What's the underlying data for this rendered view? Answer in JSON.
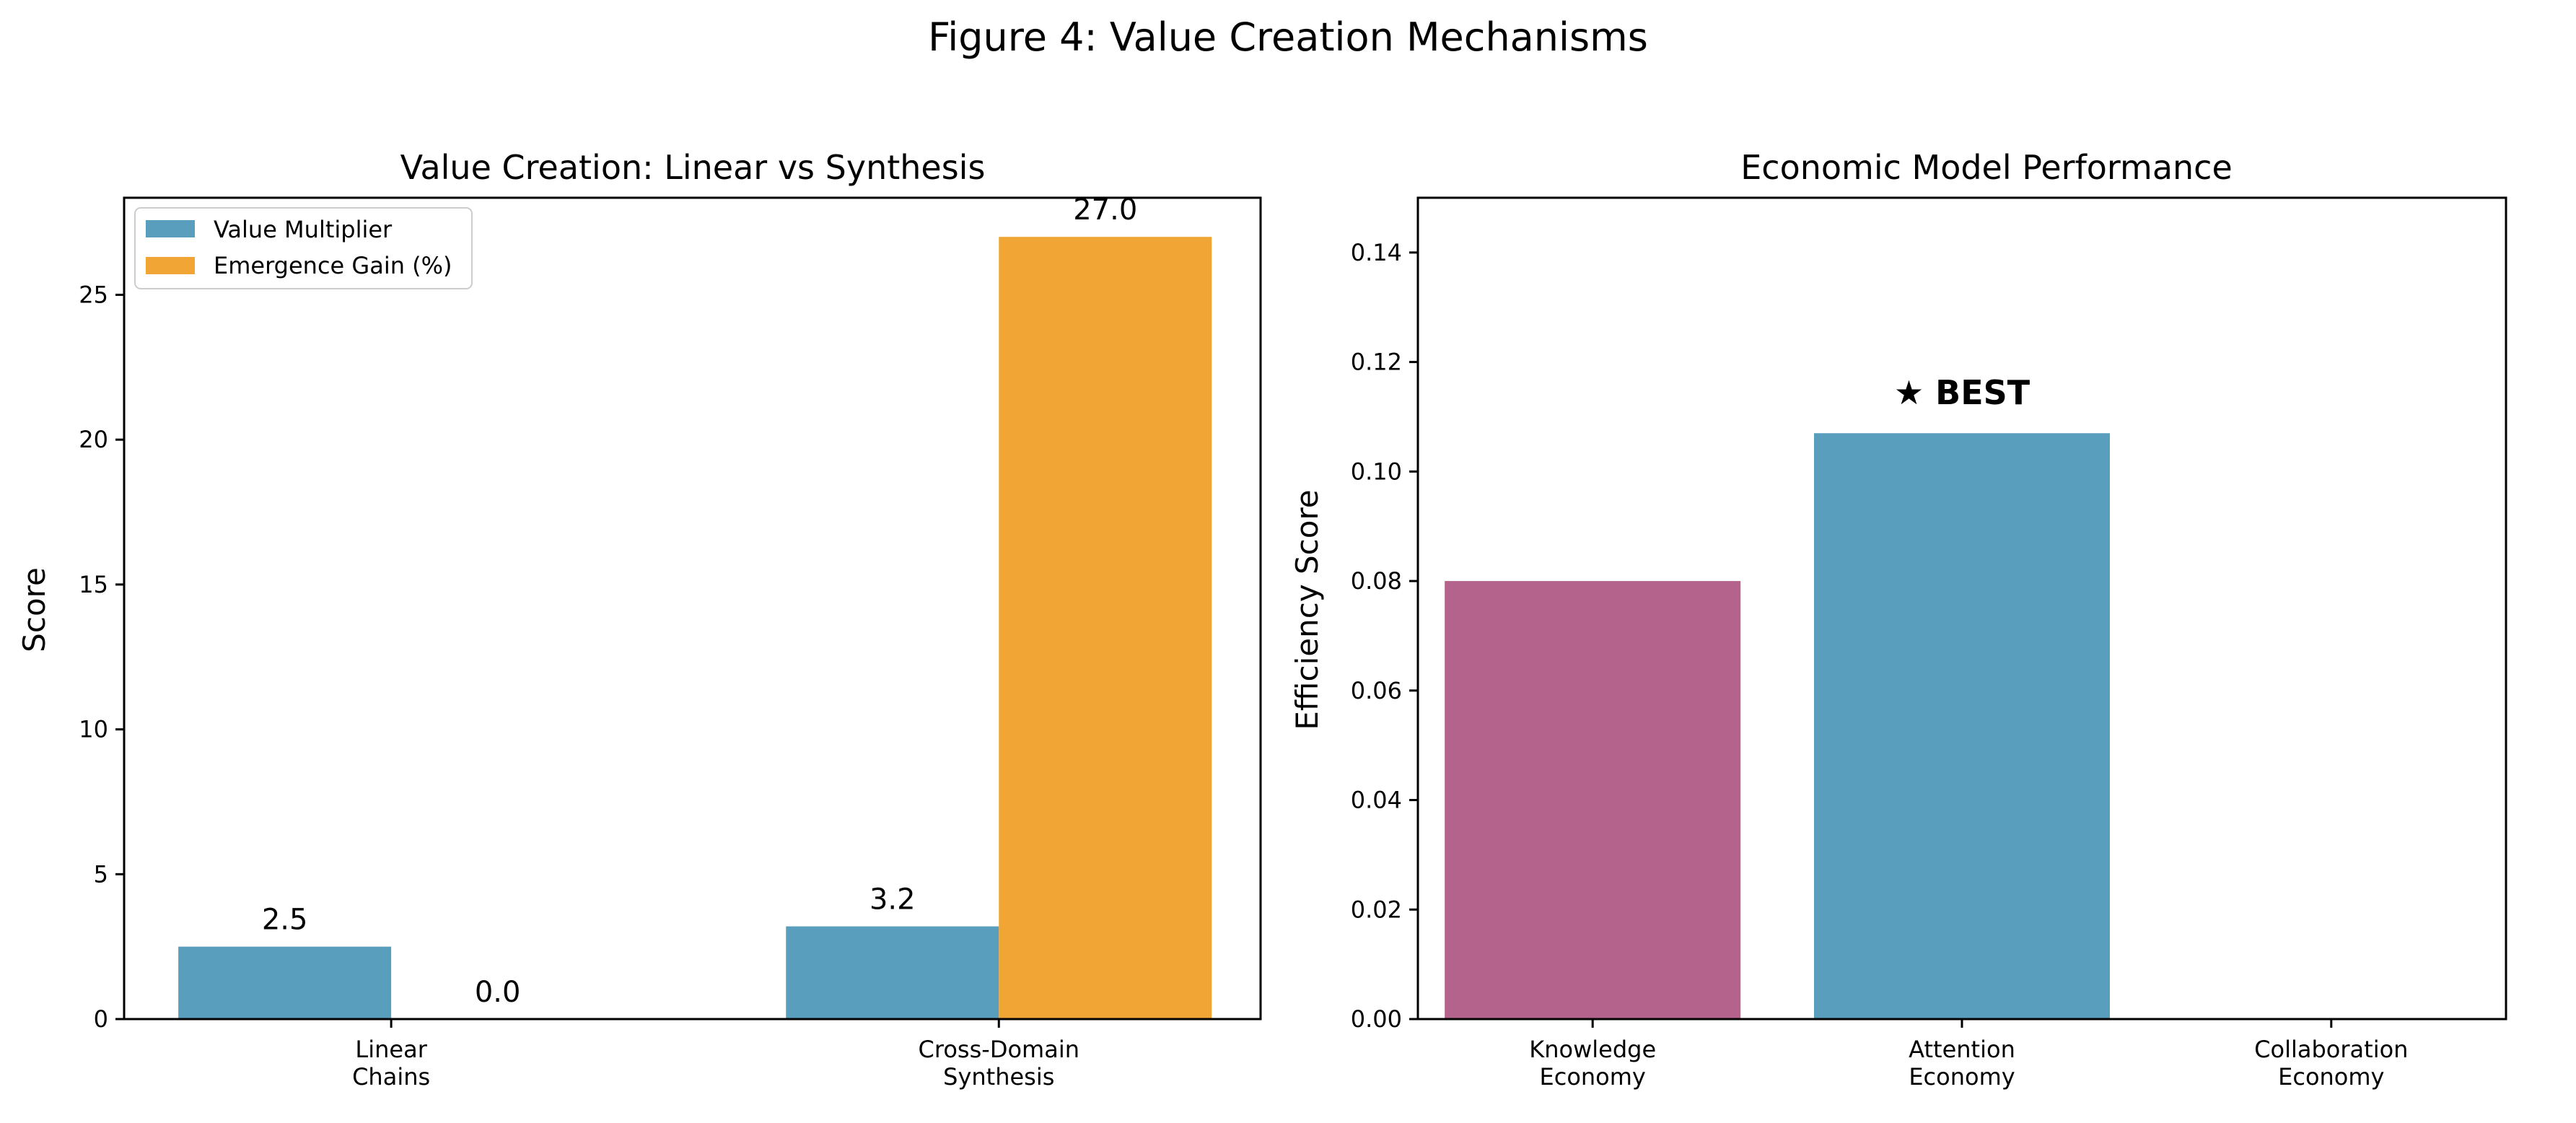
{
  "figure_title": "Figure 4: Value Creation Mechanisms",
  "colors": {
    "value_multiplier": "#5A9EBD",
    "emergence_gain": "#F0A535",
    "knowledge": "#B4638C",
    "attention": "#5A9EBD"
  },
  "chart_data": [
    {
      "type": "bar",
      "title": "Value Creation: Linear vs Synthesis",
      "xlabel": "",
      "ylabel": "Score",
      "categories": [
        "Linear\nChains",
        "Cross-Domain\nSynthesis"
      ],
      "series": [
        {
          "name": "Value Multiplier",
          "values": [
            2.5,
            3.2
          ],
          "labels": [
            "2.5",
            "3.2"
          ]
        },
        {
          "name": "Emergence Gain (%)",
          "values": [
            0.0,
            27.0
          ],
          "labels": [
            "0.0",
            "27.0"
          ]
        }
      ],
      "ylim": [
        0,
        28.35
      ],
      "yticks": [
        "0",
        "5",
        "10",
        "15",
        "20",
        "25"
      ],
      "legend": "top-left",
      "grid": false
    },
    {
      "type": "bar",
      "title": "Economic Model Performance",
      "xlabel": "",
      "ylabel": "Efficiency Score",
      "categories": [
        "Knowledge\nEconomy",
        "Attention\nEconomy",
        "Collaboration\nEconomy"
      ],
      "values": [
        0.08,
        0.107,
        0
      ],
      "ylim": [
        0,
        0.15
      ],
      "yticks": [
        "0.00",
        "0.02",
        "0.04",
        "0.06",
        "0.08",
        "0.10",
        "0.12",
        "0.14"
      ],
      "annotation": "★ BEST",
      "grid": false
    }
  ]
}
